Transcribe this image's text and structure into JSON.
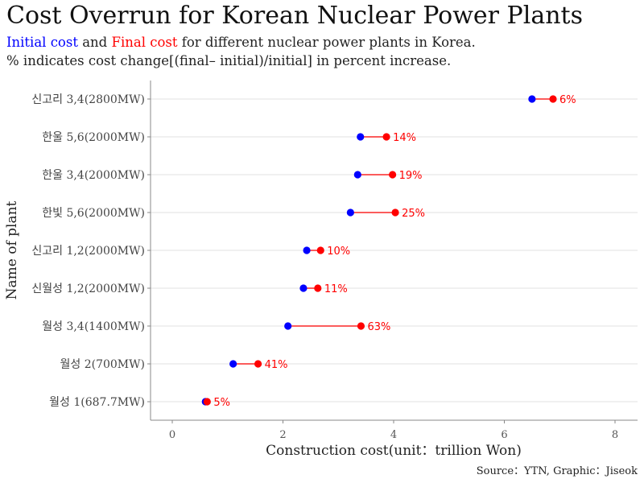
{
  "header": {
    "title": "Cost Overrun for Korean Nuclear Power Plants",
    "initial_label": "Initial cost",
    "and_text": " and ",
    "final_label": "Final cost",
    "subtitle_rest": " for different nuclear power plants in Korea.",
    "subtitle_line2": "% indicates cost change[(final– initial)/initial] in percent increase."
  },
  "caption": "Source：YTN, Graphic：Jiseok",
  "colors": {
    "initial": "#0000ff",
    "final": "#ff0000",
    "grid": "#ebebeb",
    "axis": "#888888"
  },
  "chart_data": {
    "type": "dumbbell",
    "xlabel": "Construction cost(unit：trillion Won)",
    "ylabel": "Name of plant",
    "xlim": [
      0,
      8
    ],
    "xticks": [
      0,
      2,
      4,
      6,
      8
    ],
    "grid": "horizontal",
    "categories": [
      "신고리 3,4(2800MW)",
      "한울 5,6(2000MW)",
      "한울 3,4(2000MW)",
      "한빛 5,6(2000MW)",
      "신고리 1,2(2000MW)",
      "신월성 1,2(2000MW)",
      "월성 3,4(1400MW)",
      "월성 2(700MW)",
      "월성 1(687.7MW)"
    ],
    "series": [
      {
        "name": "Initial cost",
        "values": [
          6.5,
          3.4,
          3.35,
          3.22,
          2.43,
          2.37,
          2.09,
          1.1,
          0.6
        ]
      },
      {
        "name": "Final cost",
        "values": [
          6.88,
          3.87,
          3.98,
          4.03,
          2.68,
          2.63,
          3.41,
          1.55,
          0.63
        ]
      }
    ],
    "pct_labels": [
      "6%",
      "14%",
      "19%",
      "25%",
      "10%",
      "11%",
      "63%",
      "41%",
      "5%"
    ]
  }
}
